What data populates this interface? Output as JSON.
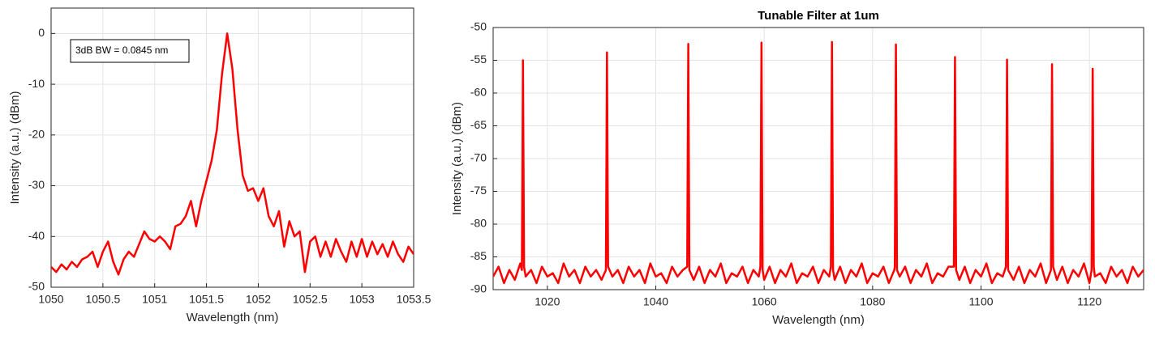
{
  "chart_data": [
    {
      "type": "line",
      "xlabel": "Wavelength (nm)",
      "ylabel": "Intensity (a.u.) (dBm)",
      "annotation": "3dB BW = 0.0845 nm",
      "xlim": [
        1050,
        1053.5
      ],
      "xticks": [
        1050,
        1050.5,
        1051,
        1051.5,
        1052,
        1052.5,
        1053,
        1053.5
      ],
      "ylim": [
        -50,
        5
      ],
      "yticks": [
        -50,
        -40,
        -30,
        -20,
        -10,
        0
      ],
      "grid": true,
      "color": "#ff0000",
      "x": [
        1050,
        1050.05,
        1050.1,
        1050.15,
        1050.2,
        1050.25,
        1050.3,
        1050.35,
        1050.4,
        1050.45,
        1050.5,
        1050.55,
        1050.6,
        1050.65,
        1050.7,
        1050.75,
        1050.8,
        1050.85,
        1050.9,
        1050.95,
        1051,
        1051.05,
        1051.1,
        1051.15,
        1051.2,
        1051.25,
        1051.3,
        1051.35,
        1051.4,
        1051.45,
        1051.5,
        1051.55,
        1051.6,
        1051.65,
        1051.7,
        1051.75,
        1051.8,
        1051.85,
        1051.9,
        1051.95,
        1052,
        1052.05,
        1052.1,
        1052.15,
        1052.2,
        1052.25,
        1052.3,
        1052.35,
        1052.4,
        1052.45,
        1052.5,
        1052.55,
        1052.6,
        1052.65,
        1052.7,
        1052.75,
        1052.8,
        1052.85,
        1052.9,
        1052.95,
        1053,
        1053.05,
        1053.1,
        1053.15,
        1053.2,
        1053.25,
        1053.3,
        1053.35,
        1053.4,
        1053.45,
        1053.5
      ],
      "values": [
        -46,
        -47,
        -45.5,
        -46.5,
        -45,
        -46,
        -44.5,
        -44,
        -43,
        -46,
        -43,
        -41,
        -45,
        -47.5,
        -44.5,
        -43,
        -44,
        -41.5,
        -39,
        -40.5,
        -41,
        -40,
        -41,
        -42.5,
        -38,
        -37.5,
        -36,
        -33,
        -38,
        -33,
        -29,
        -25,
        -19,
        -8,
        0,
        -7,
        -19,
        -28,
        -31,
        -30.5,
        -33,
        -30.5,
        -36,
        -38,
        -35,
        -42,
        -37,
        -40,
        -39,
        -47,
        -41,
        -40,
        -44,
        -41,
        -44,
        -40.5,
        -43,
        -45,
        -41,
        -44,
        -40.5,
        -44,
        -41,
        -43.5,
        -41.5,
        -44,
        -41,
        -43.5,
        -45,
        -42,
        -43.5
      ]
    },
    {
      "type": "line",
      "title": "Tunable Filter at 1um",
      "xlabel": "Wavelength (nm)",
      "ylabel": "Intensity (a.u.) (dBm)",
      "xlim": [
        1010,
        1130
      ],
      "xticks": [
        1020,
        1040,
        1060,
        1080,
        1100,
        1120
      ],
      "ylim": [
        -90,
        -50
      ],
      "yticks": [
        -90,
        -85,
        -80,
        -75,
        -70,
        -65,
        -60,
        -55,
        -50
      ],
      "grid": true,
      "color": "#ff0000",
      "x": [
        1010,
        1011,
        1012,
        1013,
        1014,
        1015,
        1015.3,
        1015.5,
        1015.7,
        1016,
        1017,
        1018,
        1019,
        1020,
        1021,
        1022,
        1023,
        1024,
        1025,
        1026,
        1027,
        1028,
        1029,
        1030,
        1030.8,
        1031,
        1031.2,
        1032,
        1033,
        1034,
        1035,
        1036,
        1037,
        1038,
        1039,
        1040,
        1041,
        1042,
        1043,
        1044,
        1045,
        1045.8,
        1046,
        1046.2,
        1047,
        1048,
        1049,
        1050,
        1051,
        1052,
        1053,
        1054,
        1055,
        1056,
        1057,
        1058,
        1059,
        1059.3,
        1059.5,
        1059.7,
        1060,
        1061,
        1062,
        1063,
        1064,
        1065,
        1066,
        1067,
        1068,
        1069,
        1070,
        1071,
        1072,
        1072.3,
        1072.5,
        1072.7,
        1073,
        1074,
        1075,
        1076,
        1077,
        1078,
        1079,
        1080,
        1081,
        1082,
        1083,
        1084,
        1084.1,
        1084.3,
        1084.5,
        1085,
        1086,
        1087,
        1088,
        1089,
        1090,
        1091,
        1092,
        1093,
        1094,
        1095,
        1095.2,
        1095.4,
        1096,
        1097,
        1098,
        1099,
        1100,
        1101,
        1102,
        1103,
        1104,
        1104.6,
        1104.8,
        1105,
        1106,
        1107,
        1108,
        1109,
        1110,
        1111,
        1112,
        1112.9,
        1113.1,
        1113.3,
        1114,
        1115,
        1116,
        1117,
        1118,
        1119,
        1120,
        1120.4,
        1120.6,
        1120.8,
        1121,
        1122,
        1123,
        1124,
        1125,
        1126,
        1127,
        1128,
        1129,
        1130
      ],
      "values": [
        -88,
        -86.5,
        -89,
        -87,
        -88.5,
        -86,
        -87,
        -55,
        -86.5,
        -88,
        -87,
        -89,
        -86.5,
        -88,
        -87.5,
        -89,
        -86,
        -88,
        -87,
        -89,
        -86.5,
        -88,
        -87,
        -88.5,
        -87,
        -53.8,
        -86.5,
        -88,
        -87,
        -89,
        -86.5,
        -88,
        -87,
        -89,
        -86,
        -88,
        -87.5,
        -89,
        -86.5,
        -88,
        -87,
        -86.5,
        -52.5,
        -87,
        -88.5,
        -86.5,
        -89,
        -87,
        -88,
        -86,
        -89,
        -87.5,
        -88,
        -86.5,
        -89,
        -87,
        -88,
        -86.5,
        -52.3,
        -87,
        -88.5,
        -86.5,
        -89,
        -87,
        -88,
        -86,
        -89,
        -87.5,
        -88,
        -86.5,
        -89,
        -87,
        -88,
        -86.5,
        -52.2,
        -87,
        -88.5,
        -86.5,
        -89,
        -87,
        -88,
        -86,
        -89,
        -87.5,
        -88,
        -86.5,
        -89,
        -87,
        -86.5,
        -52.6,
        -87,
        -88,
        -86.5,
        -89,
        -87,
        -88,
        -86,
        -89,
        -87.5,
        -88,
        -86.5,
        -86.5,
        -54.5,
        -87,
        -88.5,
        -86.5,
        -89,
        -87,
        -88,
        -86,
        -89,
        -87.5,
        -88,
        -86.5,
        -54.9,
        -87,
        -88.5,
        -86.5,
        -89,
        -87,
        -88,
        -86,
        -89,
        -87,
        -55.6,
        -86.5,
        -88.5,
        -86.5,
        -89,
        -87,
        -88,
        -86,
        -89,
        -87,
        -56.3,
        -86.5,
        -88,
        -87.5,
        -89,
        -86.5,
        -88,
        -87,
        -89,
        -86.5,
        -88,
        -87
      ]
    }
  ]
}
